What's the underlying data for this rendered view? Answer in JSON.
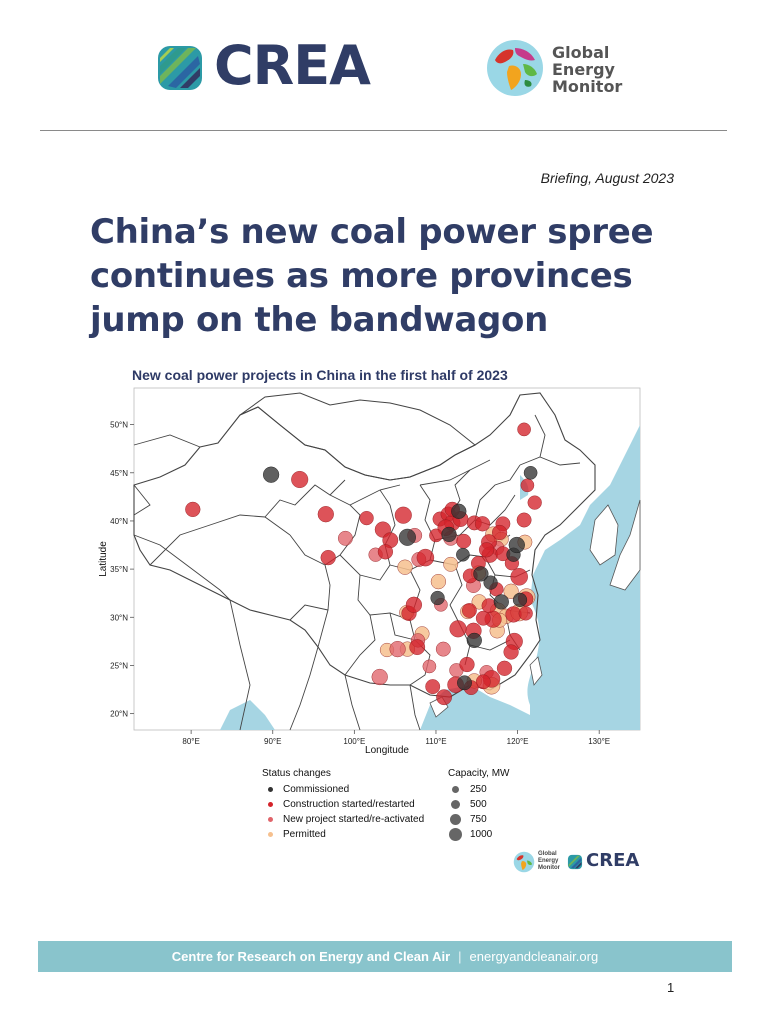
{
  "header": {
    "crea_logo_text": "CREA",
    "gem_logo_lines": [
      "Global",
      "Energy",
      "Monitor"
    ]
  },
  "briefing_date": "Briefing, August 2023",
  "title_lines": [
    "China’s new coal power spree",
    "continues as more provinces",
    "jump on the bandwagon"
  ],
  "figure": {
    "title": "New coal power projects in China in the first half of 2023",
    "xlabel": "Longitude",
    "ylabel": "Latitude",
    "x_ticks": [
      "80°E",
      "90°E",
      "100°E",
      "110°E",
      "120°E",
      "130°E"
    ],
    "y_ticks": [
      "50°N",
      "45°N",
      "40°N",
      "35°N",
      "30°N",
      "25°N",
      "20°N"
    ],
    "legend_status_title": "Status changes",
    "legend_status": [
      {
        "label": "Commissioned",
        "color": "#333333"
      },
      {
        "label": "Construction started/restarted",
        "color": "#d4232a"
      },
      {
        "label": "New project started/re-activated",
        "color": "#e0646a"
      },
      {
        "label": "Permitted",
        "color": "#f6c08e"
      }
    ],
    "legend_capacity_title": "Capacity, MW",
    "legend_capacity": [
      "250",
      "500",
      "750",
      "1000"
    ],
    "mini_logos_text": [
      "Global",
      "Energy",
      "Monitor",
      "CREA"
    ]
  },
  "chart_data": {
    "type": "scatter",
    "title": "New coal power projects in China in the first half of 2023",
    "xlabel": "Longitude",
    "ylabel": "Latitude",
    "xlim": [
      73,
      135
    ],
    "ylim": [
      18.3,
      53.8
    ],
    "series": [
      {
        "name": "Commissioned",
        "color": "#333333",
        "points": [
          [
            89.8,
            44.8,
            600
          ],
          [
            106.5,
            38.3,
            700
          ],
          [
            112.8,
            41,
            500
          ],
          [
            115.5,
            34.5,
            500
          ],
          [
            110.2,
            32,
            400
          ],
          [
            114.7,
            27.6,
            500
          ],
          [
            119.5,
            36.5,
            400
          ],
          [
            121.6,
            45,
            350
          ],
          [
            113.5,
            23.2,
            450
          ],
          [
            111.6,
            38.6,
            500
          ],
          [
            116.7,
            33.6,
            400
          ],
          [
            118,
            31.6,
            500
          ],
          [
            120.3,
            31.8,
            400
          ],
          [
            113.3,
            36.5,
            350
          ],
          [
            119.9,
            37.5,
            600
          ]
        ]
      },
      {
        "name": "Construction started/restarted",
        "color": "#d4232a",
        "points": [
          [
            93.3,
            44.3,
            700
          ],
          [
            80.2,
            41.2,
            500
          ],
          [
            96.5,
            40.7,
            600
          ],
          [
            103.5,
            39.1,
            600
          ],
          [
            104.4,
            38,
            550
          ],
          [
            106,
            40.6,
            700
          ],
          [
            110.5,
            40.2,
            450
          ],
          [
            111.5,
            40.7,
            500
          ],
          [
            112,
            39.8,
            600
          ],
          [
            113,
            40.2,
            550
          ],
          [
            111.2,
            39.3,
            650
          ],
          [
            114.7,
            39.8,
            450
          ],
          [
            115.7,
            39.7,
            500
          ],
          [
            116.5,
            37.8,
            550
          ],
          [
            118.2,
            39.7,
            450
          ],
          [
            120.8,
            40.1,
            450
          ],
          [
            117.8,
            38.8,
            500
          ],
          [
            119.3,
            35.6,
            400
          ],
          [
            116.6,
            36.5,
            600
          ],
          [
            118.2,
            36.6,
            450
          ],
          [
            115.2,
            35.6,
            450
          ],
          [
            114.2,
            34.3,
            450
          ],
          [
            108.7,
            36.2,
            750
          ],
          [
            103.8,
            36.8,
            500
          ],
          [
            96.8,
            36.2,
            500
          ],
          [
            117,
            29.8,
            700
          ],
          [
            115.8,
            29.9,
            450
          ],
          [
            114.6,
            28.6,
            600
          ],
          [
            119.5,
            30.3,
            600
          ],
          [
            120.2,
            34.2,
            750
          ],
          [
            121,
            31.9,
            500
          ],
          [
            119.6,
            27.5,
            700
          ],
          [
            119.2,
            26.4,
            500
          ],
          [
            116.8,
            23.6,
            750
          ],
          [
            115.8,
            23.3,
            450
          ],
          [
            114.3,
            22.7,
            450
          ],
          [
            109.6,
            22.8,
            450
          ],
          [
            107.7,
            26.9,
            550
          ],
          [
            106.7,
            30.4,
            500
          ],
          [
            107.3,
            31.3,
            600
          ],
          [
            112.7,
            28.8,
            700
          ],
          [
            113.8,
            25.1,
            500
          ],
          [
            122.1,
            41.9,
            400
          ],
          [
            121.2,
            43.7,
            350
          ],
          [
            120.8,
            49.5,
            350
          ],
          [
            101.5,
            40.3,
            400
          ],
          [
            112,
            41.2,
            500
          ],
          [
            112.4,
            23,
            650
          ],
          [
            111,
            21.7,
            550
          ],
          [
            114.1,
            30.7,
            450
          ],
          [
            116.5,
            31.2,
            450
          ],
          [
            118.4,
            24.7,
            500
          ],
          [
            121,
            30.4,
            400
          ],
          [
            117.4,
            32.9,
            400
          ],
          [
            116.2,
            37,
            500
          ],
          [
            113.4,
            37.9,
            450
          ],
          [
            110,
            38.5,
            350
          ]
        ]
      },
      {
        "name": "New project started/re-activated",
        "color": "#e0646a",
        "points": [
          [
            98.9,
            38.2,
            450
          ],
          [
            102.6,
            36.5,
            400
          ],
          [
            107.9,
            36,
            450
          ],
          [
            107.4,
            38.5,
            450
          ],
          [
            110.6,
            31.3,
            350
          ],
          [
            105.3,
            26.7,
            600
          ],
          [
            103.1,
            23.8,
            600
          ],
          [
            114.6,
            33.3,
            450
          ],
          [
            111.8,
            38.2,
            450
          ],
          [
            112.5,
            24.5,
            400
          ],
          [
            116.2,
            24.3,
            400
          ],
          [
            107.8,
            27.6,
            400
          ],
          [
            109.2,
            24.9,
            350
          ],
          [
            117.5,
            37.2,
            400
          ],
          [
            110.9,
            26.7,
            450
          ]
        ]
      },
      {
        "name": "Permitted",
        "color": "#f6c08e",
        "points": [
          [
            106.2,
            35.2,
            500
          ],
          [
            110.3,
            33.7,
            500
          ],
          [
            117,
            38.6,
            550
          ],
          [
            118,
            38.1,
            450
          ],
          [
            120.9,
            37.8,
            450
          ],
          [
            121.1,
            32.1,
            750
          ],
          [
            117.6,
            30.7,
            550
          ],
          [
            115.3,
            31.6,
            500
          ],
          [
            117.5,
            28.6,
            500
          ],
          [
            114.7,
            23.4,
            500
          ],
          [
            116.8,
            22.9,
            750
          ],
          [
            106.5,
            26.7,
            500
          ],
          [
            108.3,
            28.3,
            450
          ],
          [
            113.9,
            30.6,
            500
          ],
          [
            119.2,
            32.7,
            500
          ],
          [
            115.2,
            34.6,
            500
          ],
          [
            118.6,
            30.1,
            500
          ],
          [
            117.8,
            29.7,
            450
          ],
          [
            104,
            26.6,
            400
          ],
          [
            111.8,
            35.5,
            450
          ],
          [
            120.2,
            30.5,
            750
          ],
          [
            106.4,
            30.5,
            450
          ]
        ]
      }
    ]
  },
  "footer": {
    "org": "Centre for Research on Energy and Clean Air",
    "sep": "|",
    "url": "energyandcleanair.org"
  },
  "page_number": "1",
  "colors": {
    "navy": "#303d66",
    "footer_bg": "#89c4cc",
    "sea": "#a6d5e3"
  }
}
